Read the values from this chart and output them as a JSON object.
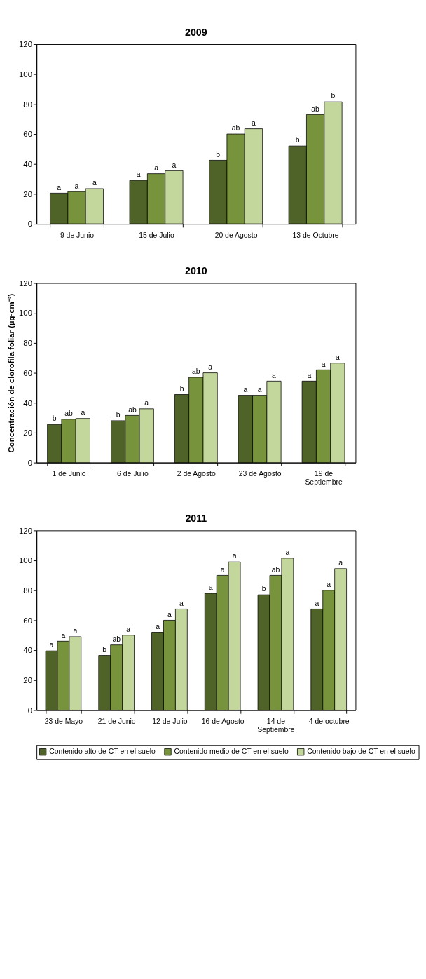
{
  "chart_data": [
    {
      "type": "bar",
      "title": "2009",
      "categories": [
        "9 de Junio",
        "15 de Julio",
        "20 de Agosto",
        "13 de Octubre"
      ],
      "ylim": [
        0,
        120
      ],
      "yticks": [
        0,
        20,
        40,
        60,
        80,
        100,
        120
      ],
      "grid": false,
      "legend": false,
      "series": [
        {
          "color": "#4f6228",
          "values": [
            20.5,
            29,
            42.5,
            52
          ],
          "value_labels": [
            "a",
            "a",
            "b",
            "b"
          ]
        },
        {
          "color": "#77933c",
          "values": [
            21.5,
            33.5,
            60,
            73
          ],
          "value_labels": [
            "a",
            "a",
            "ab",
            "ab"
          ]
        },
        {
          "color": "#c3d69b",
          "values": [
            23.5,
            35.5,
            63.5,
            81.5
          ],
          "value_labels": [
            "a",
            "a",
            "a",
            "b"
          ]
        }
      ]
    },
    {
      "type": "bar",
      "title": "2010",
      "ylabel": "Concentración de clorofila foliar (µg·cm⁻²)",
      "categories": [
        "1 de Junio",
        "6 de Julio",
        "2 de Agosto",
        "23 de Agosto",
        "19 de Septiembre"
      ],
      "ylim": [
        0,
        120
      ],
      "yticks": [
        0,
        20,
        40,
        60,
        80,
        100,
        120
      ],
      "grid": false,
      "legend": false,
      "series": [
        {
          "color": "#4f6228",
          "values": [
            25.5,
            28,
            45.5,
            45,
            54.5
          ],
          "value_labels": [
            "b",
            "b",
            "b",
            "a",
            "a"
          ]
        },
        {
          "color": "#77933c",
          "values": [
            29,
            31.5,
            57,
            45,
            62
          ],
          "value_labels": [
            "ab",
            "ab",
            "ab",
            "a",
            "a"
          ]
        },
        {
          "color": "#c3d69b",
          "values": [
            29.5,
            36,
            60,
            54.5,
            66.5
          ],
          "value_labels": [
            "a",
            "a",
            "a",
            "a",
            "a"
          ]
        }
      ]
    },
    {
      "type": "bar",
      "title": "2011",
      "categories": [
        "23 de Mayo",
        "21 de Junio",
        "12 de Julio",
        "16 de Agosto",
        "14 de Septiembre",
        "4 de octubre"
      ],
      "ylim": [
        0,
        120
      ],
      "yticks": [
        0,
        20,
        40,
        60,
        80,
        100,
        120
      ],
      "grid": false,
      "legend": "bottom",
      "series": [
        {
          "name": "Contenido alto de CT en el suelo",
          "color": "#4f6228",
          "values": [
            39.5,
            36.5,
            52,
            78,
            77,
            67.5
          ],
          "value_labels": [
            "a",
            "b",
            "a",
            "a",
            "b",
            "a"
          ]
        },
        {
          "name": "Contenido medio de CT en el suelo",
          "color": "#77933c",
          "values": [
            46,
            43.5,
            60,
            90,
            90,
            80
          ],
          "value_labels": [
            "a",
            "ab",
            "a",
            "a",
            "ab",
            "a"
          ]
        },
        {
          "name": "Contenido bajo de CT en el suelo",
          "color": "#c3d69b",
          "values": [
            49,
            50,
            67.5,
            99,
            101.5,
            94.5
          ],
          "value_labels": [
            "a",
            "a",
            "a",
            "a",
            "a",
            "a"
          ]
        }
      ]
    }
  ]
}
